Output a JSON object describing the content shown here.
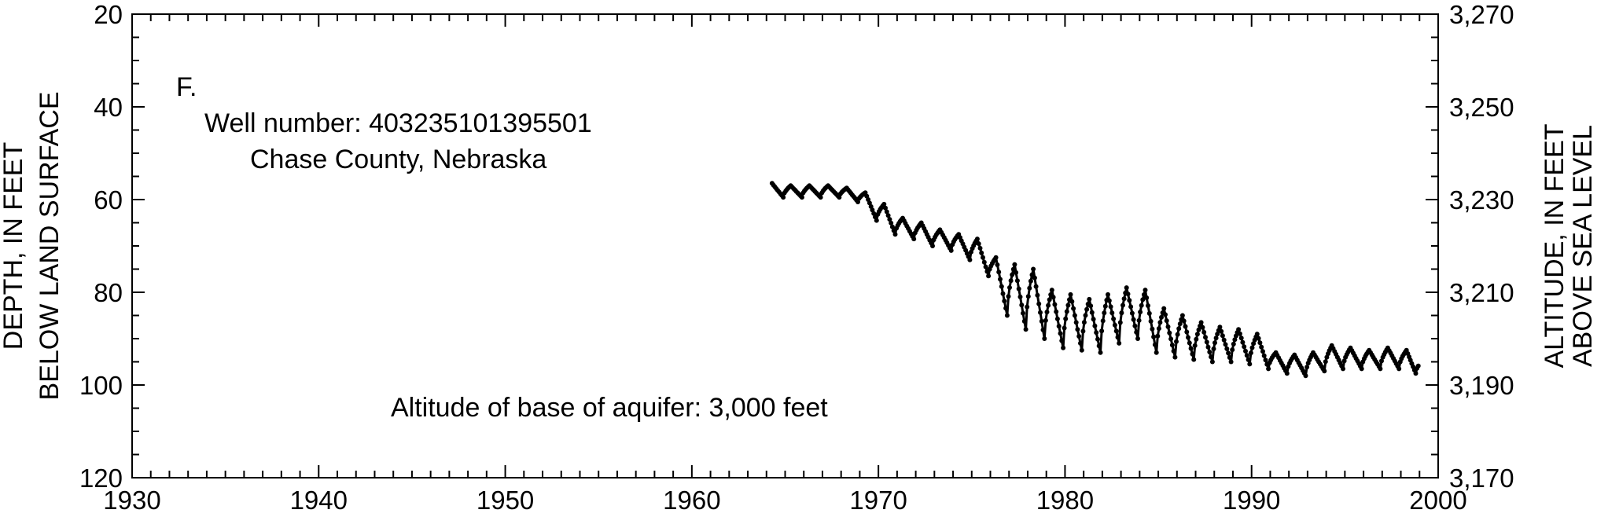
{
  "chart_data": {
    "type": "scatter",
    "panel_label": "F.",
    "annotations": {
      "well_number": "Well number: 403235101395501",
      "county": "Chase County, Nebraska",
      "aquifer_base": "Altitude of base of aquifer: 3,000 feet"
    },
    "ylabel_left": [
      "DEPTH, IN FEET",
      "BELOW LAND SURFACE"
    ],
    "ylabel_right": [
      "ALTITUDE, IN FEET",
      "ABOVE SEA LEVEL"
    ],
    "xlim": [
      1930,
      2000
    ],
    "ylim_left": [
      120,
      20
    ],
    "ylim_right": [
      3170,
      3270
    ],
    "y_left_inverted": true,
    "x_ticks": [
      "1930",
      "1940",
      "1950",
      "1960",
      "1970",
      "1980",
      "1990",
      "2000"
    ],
    "y_left_ticks": [
      "20",
      "40",
      "60",
      "80",
      "100",
      "120"
    ],
    "y_right_ticks": [
      "3,270",
      "3,250",
      "3,230",
      "3,210",
      "3,190",
      "3,170"
    ],
    "grid": false,
    "series": [
      {
        "peaks": [
          [
            1964.3,
            56.5
          ],
          [
            1965.3,
            57.0
          ],
          [
            1966.3,
            57.0
          ],
          [
            1967.3,
            57.0
          ],
          [
            1968.3,
            57.5
          ],
          [
            1969.3,
            58.5
          ],
          [
            1970.3,
            61.0
          ],
          [
            1971.3,
            64.0
          ],
          [
            1972.3,
            65.0
          ],
          [
            1973.3,
            66.5
          ],
          [
            1974.3,
            67.5
          ],
          [
            1975.3,
            68.5
          ],
          [
            1976.3,
            72.5
          ],
          [
            1977.3,
            74.0
          ],
          [
            1978.3,
            75.0
          ],
          [
            1979.3,
            79.5
          ],
          [
            1980.3,
            80.5
          ],
          [
            1981.3,
            81.5
          ],
          [
            1982.3,
            80.5
          ],
          [
            1983.3,
            79.0
          ],
          [
            1984.3,
            79.5
          ],
          [
            1985.3,
            83.5
          ],
          [
            1986.3,
            85.0
          ],
          [
            1987.3,
            86.5
          ],
          [
            1988.3,
            87.5
          ],
          [
            1989.3,
            88.0
          ],
          [
            1990.3,
            89.0
          ],
          [
            1991.3,
            93.0
          ],
          [
            1992.3,
            93.5
          ],
          [
            1993.3,
            93.0
          ],
          [
            1994.3,
            91.5
          ],
          [
            1995.3,
            92.0
          ],
          [
            1996.3,
            92.5
          ],
          [
            1997.3,
            92.0
          ],
          [
            1998.3,
            92.5
          ]
        ],
        "troughs": [
          [
            1964.9,
            59.5
          ],
          [
            1965.9,
            59.5
          ],
          [
            1966.9,
            59.5
          ],
          [
            1967.9,
            59.5
          ],
          [
            1968.9,
            60.5
          ],
          [
            1969.9,
            64.5
          ],
          [
            1970.9,
            67.5
          ],
          [
            1971.9,
            68.5
          ],
          [
            1972.9,
            70.0
          ],
          [
            1973.9,
            71.0
          ],
          [
            1974.9,
            73.0
          ],
          [
            1975.9,
            76.5
          ],
          [
            1976.9,
            85.0
          ],
          [
            1977.9,
            88.0
          ],
          [
            1978.9,
            90.0
          ],
          [
            1979.9,
            92.0
          ],
          [
            1980.9,
            92.5
          ],
          [
            1981.9,
            93.0
          ],
          [
            1982.9,
            91.0
          ],
          [
            1983.9,
            90.0
          ],
          [
            1984.9,
            93.0
          ],
          [
            1985.9,
            94.0
          ],
          [
            1986.9,
            94.5
          ],
          [
            1987.9,
            95.0
          ],
          [
            1988.9,
            95.0
          ],
          [
            1989.9,
            95.5
          ],
          [
            1990.9,
            96.5
          ],
          [
            1991.9,
            97.5
          ],
          [
            1992.9,
            98.0
          ],
          [
            1993.9,
            97.0
          ],
          [
            1994.9,
            96.5
          ],
          [
            1995.9,
            96.5
          ],
          [
            1996.9,
            96.5
          ],
          [
            1997.9,
            96.5
          ],
          [
            1998.8,
            97.5
          ]
        ],
        "end": [
          1999.0,
          95.5
        ]
      }
    ]
  }
}
